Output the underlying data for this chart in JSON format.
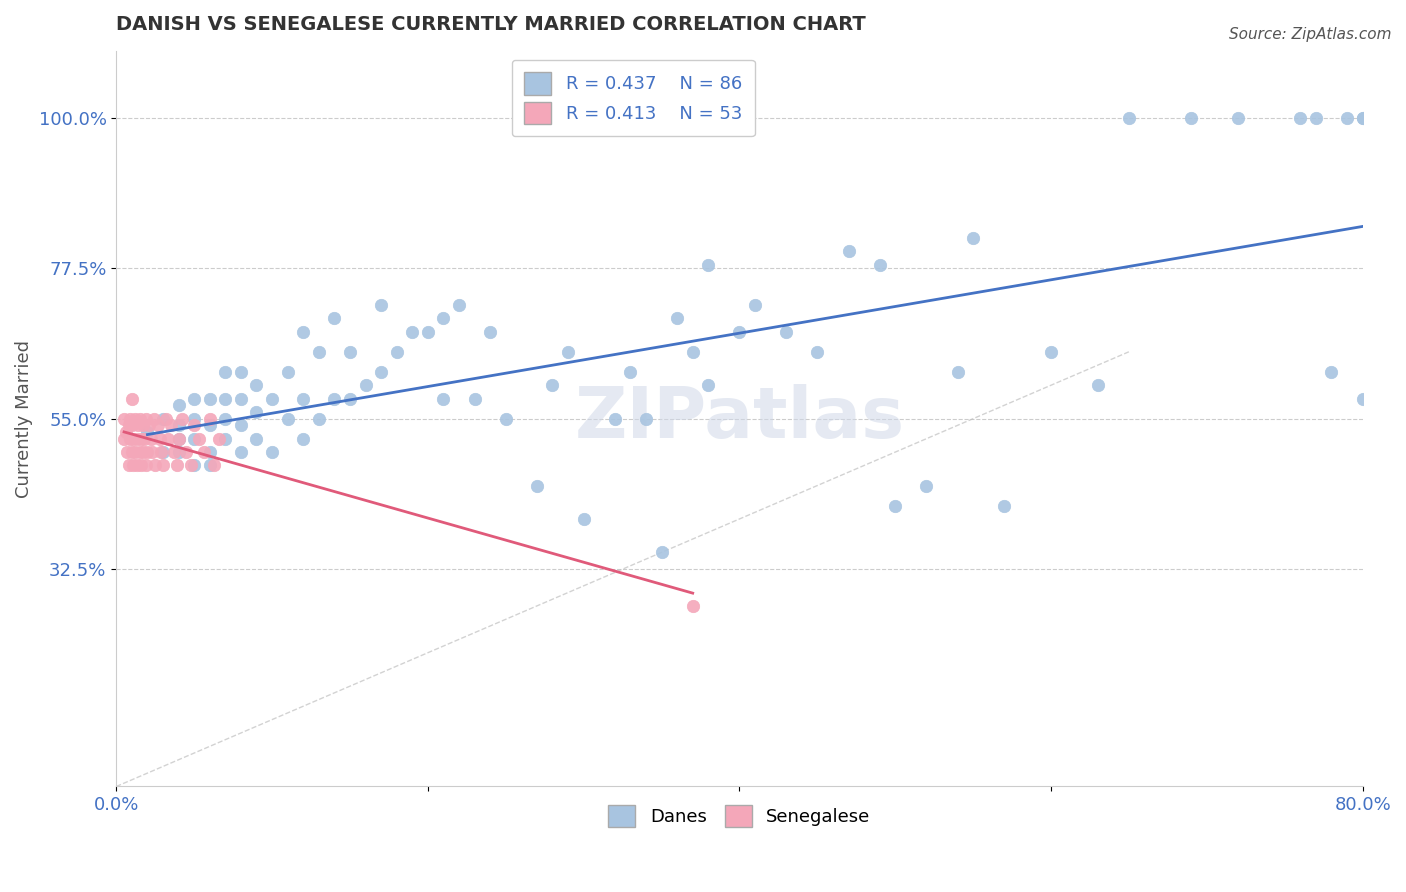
{
  "title": "DANISH VS SENEGALESE CURRENTLY MARRIED CORRELATION CHART",
  "source": "Source: ZipAtlas.com",
  "xlabel": "",
  "ylabel": "Currently Married",
  "xlim": [
    0.0,
    0.8
  ],
  "ylim": [
    0.0,
    1.1
  ],
  "yticks": [
    0.325,
    0.55,
    0.775,
    1.0
  ],
  "ytick_labels": [
    "32.5%",
    "55.0%",
    "77.5%",
    "100.0%"
  ],
  "xticks": [
    0.0,
    0.2,
    0.4,
    0.6,
    0.8
  ],
  "xtick_labels": [
    "0.0%",
    "",
    "",
    "",
    "80.0%"
  ],
  "danes_color": "#a8c4e0",
  "senegalese_color": "#f4a7b9",
  "trend_color_danes": "#4472c4",
  "trend_color_senegalese": "#e05a7a",
  "diag_color": "#c0c0c0",
  "R_danes": 0.437,
  "N_danes": 86,
  "R_senegalese": 0.413,
  "N_senegalese": 53,
  "legend_danes_label": "Danes",
  "legend_senegalese_label": "Senegalese",
  "watermark": "ZIPatlas",
  "danes_x": [
    0.02,
    0.03,
    0.03,
    0.04,
    0.04,
    0.04,
    0.04,
    0.05,
    0.05,
    0.05,
    0.05,
    0.06,
    0.06,
    0.06,
    0.06,
    0.07,
    0.07,
    0.07,
    0.07,
    0.08,
    0.08,
    0.08,
    0.08,
    0.09,
    0.09,
    0.09,
    0.1,
    0.1,
    0.11,
    0.11,
    0.12,
    0.12,
    0.12,
    0.13,
    0.13,
    0.14,
    0.14,
    0.15,
    0.15,
    0.16,
    0.17,
    0.17,
    0.18,
    0.19,
    0.2,
    0.21,
    0.21,
    0.22,
    0.23,
    0.24,
    0.25,
    0.27,
    0.28,
    0.29,
    0.3,
    0.32,
    0.33,
    0.34,
    0.35,
    0.36,
    0.37,
    0.38,
    0.38,
    0.4,
    0.41,
    0.43,
    0.45,
    0.47,
    0.49,
    0.5,
    0.52,
    0.54,
    0.55,
    0.57,
    0.6,
    0.63,
    0.65,
    0.69,
    0.72,
    0.76,
    0.77,
    0.78,
    0.79,
    0.8,
    0.8,
    0.8
  ],
  "danes_y": [
    0.53,
    0.5,
    0.55,
    0.52,
    0.54,
    0.57,
    0.5,
    0.48,
    0.52,
    0.55,
    0.58,
    0.5,
    0.48,
    0.54,
    0.58,
    0.52,
    0.55,
    0.58,
    0.62,
    0.5,
    0.54,
    0.58,
    0.62,
    0.52,
    0.56,
    0.6,
    0.5,
    0.58,
    0.55,
    0.62,
    0.52,
    0.58,
    0.68,
    0.55,
    0.65,
    0.58,
    0.7,
    0.58,
    0.65,
    0.6,
    0.62,
    0.72,
    0.65,
    0.68,
    0.68,
    0.7,
    0.58,
    0.72,
    0.58,
    0.68,
    0.55,
    0.45,
    0.6,
    0.65,
    0.4,
    0.55,
    0.62,
    0.55,
    0.35,
    0.7,
    0.65,
    0.6,
    0.78,
    0.68,
    0.72,
    0.68,
    0.65,
    0.8,
    0.78,
    0.42,
    0.45,
    0.62,
    0.82,
    0.42,
    0.65,
    0.6,
    1.0,
    1.0,
    1.0,
    1.0,
    1.0,
    0.62,
    1.0,
    1.0,
    0.58,
    1.0
  ],
  "senegalese_x": [
    0.005,
    0.005,
    0.006,
    0.007,
    0.008,
    0.008,
    0.009,
    0.009,
    0.01,
    0.01,
    0.01,
    0.011,
    0.011,
    0.012,
    0.012,
    0.013,
    0.013,
    0.014,
    0.015,
    0.015,
    0.016,
    0.016,
    0.017,
    0.017,
    0.018,
    0.019,
    0.019,
    0.02,
    0.021,
    0.022,
    0.023,
    0.024,
    0.025,
    0.027,
    0.028,
    0.029,
    0.03,
    0.032,
    0.033,
    0.035,
    0.037,
    0.039,
    0.04,
    0.042,
    0.045,
    0.048,
    0.05,
    0.053,
    0.056,
    0.06,
    0.063,
    0.066,
    0.37
  ],
  "senegalese_y": [
    0.52,
    0.55,
    0.53,
    0.5,
    0.54,
    0.48,
    0.52,
    0.55,
    0.5,
    0.54,
    0.58,
    0.48,
    0.52,
    0.5,
    0.55,
    0.52,
    0.48,
    0.54,
    0.5,
    0.55,
    0.52,
    0.48,
    0.54,
    0.5,
    0.52,
    0.55,
    0.48,
    0.5,
    0.54,
    0.52,
    0.5,
    0.55,
    0.48,
    0.54,
    0.52,
    0.5,
    0.48,
    0.55,
    0.52,
    0.54,
    0.5,
    0.48,
    0.52,
    0.55,
    0.5,
    0.48,
    0.54,
    0.52,
    0.5,
    0.55,
    0.48,
    0.52,
    0.27
  ]
}
